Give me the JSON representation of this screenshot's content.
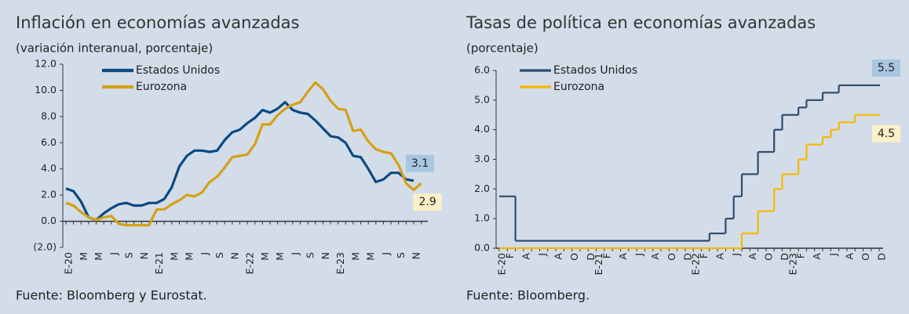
{
  "chart_data": [
    {
      "type": "line",
      "title": "Inflación en economías avanzadas",
      "subtitle": "(variación interanual, porcentaje)",
      "source": "Fuente: Bloomberg y Eurostat.",
      "categories": [
        "E-20",
        null,
        "M",
        null,
        "M",
        null,
        "J",
        null,
        "S",
        null,
        "N",
        null,
        "E-21",
        null,
        "M",
        null,
        "M",
        null,
        "J",
        null,
        "S",
        null,
        "N",
        null,
        "E-22",
        null,
        "M",
        null,
        "M",
        null,
        "J",
        null,
        "S",
        null,
        "N",
        null,
        "E-23",
        null,
        "M",
        null,
        "M",
        null,
        "J",
        null,
        "S",
        null,
        "N",
        null
      ],
      "series": [
        {
          "name": "Estados Unidos",
          "color": "#0b4a84",
          "label_bg": "#a9c6e0",
          "values": [
            2.5,
            2.3,
            1.5,
            0.3,
            0.1,
            0.6,
            1.0,
            1.3,
            1.4,
            1.2,
            1.2,
            1.4,
            1.4,
            1.7,
            2.6,
            4.2,
            5.0,
            5.4,
            5.4,
            5.3,
            5.4,
            6.2,
            6.8,
            7.0,
            7.5,
            7.9,
            8.5,
            8.3,
            8.6,
            9.1,
            8.5,
            8.3,
            8.2,
            7.7,
            7.1,
            6.5,
            6.4,
            6.0,
            5.0,
            4.9,
            4.0,
            3.0,
            3.2,
            3.7,
            3.7,
            3.2,
            3.1,
            null
          ]
        },
        {
          "name": "Eurozona",
          "color": "#d4a017",
          "label_bg": "#fbf0c8",
          "values": [
            1.4,
            1.2,
            0.7,
            0.3,
            0.1,
            0.3,
            0.4,
            -0.2,
            -0.3,
            -0.3,
            -0.3,
            -0.3,
            0.9,
            0.9,
            1.3,
            1.6,
            2.0,
            1.9,
            2.2,
            3.0,
            3.4,
            4.1,
            4.9,
            5.0,
            5.1,
            5.9,
            7.4,
            7.4,
            8.1,
            8.6,
            8.9,
            9.1,
            9.9,
            10.6,
            10.1,
            9.2,
            8.6,
            8.5,
            6.9,
            7.0,
            6.1,
            5.5,
            5.3,
            5.2,
            4.3,
            2.9,
            2.4,
            2.9
          ]
        }
      ],
      "ylim": [
        -2,
        12
      ],
      "yticks": [
        {
          "value": -2,
          "label": "(2.0)"
        },
        {
          "value": 0,
          "label": "0.0"
        },
        {
          "value": 2,
          "label": "2.0"
        },
        {
          "value": 4,
          "label": "4.0"
        },
        {
          "value": 6,
          "label": "6.0"
        },
        {
          "value": 8,
          "label": "8.0"
        },
        {
          "value": 10,
          "label": "10.0"
        },
        {
          "value": 12,
          "label": "12.0"
        }
      ]
    },
    {
      "type": "step",
      "title": "Tasas de política en economías avanzadas",
      "subtitle": "(porcentaje)",
      "source": "Fuente: Bloomberg.",
      "categories": [
        "E-20",
        "F",
        null,
        "A",
        null,
        "J",
        null,
        "A",
        null,
        "O",
        null,
        "D",
        "E-21",
        "F",
        null,
        "A",
        null,
        "J",
        null,
        "A",
        null,
        "O",
        null,
        "D",
        "E-22",
        "F",
        null,
        "A",
        null,
        "J",
        null,
        "A",
        null,
        "O",
        null,
        "D",
        "E-23",
        "F",
        null,
        "A",
        null,
        "J",
        null,
        "A",
        null,
        "O",
        null,
        "D"
      ],
      "series": [
        {
          "name": "Estados Unidos",
          "color": "#2e4d6f",
          "label_bg": "#a9c6e0",
          "values": [
            1.75,
            1.75,
            0.25,
            0.25,
            0.25,
            0.25,
            0.25,
            0.25,
            0.25,
            0.25,
            0.25,
            0.25,
            0.25,
            0.25,
            0.25,
            0.25,
            0.25,
            0.25,
            0.25,
            0.25,
            0.25,
            0.25,
            0.25,
            0.25,
            0.25,
            0.25,
            0.5,
            0.5,
            1.0,
            1.75,
            2.5,
            2.5,
            3.25,
            3.25,
            4.0,
            4.5,
            4.5,
            4.75,
            5.0,
            5.0,
            5.25,
            5.25,
            5.5,
            5.5,
            5.5,
            5.5,
            5.5,
            5.5
          ]
        },
        {
          "name": "Eurozona",
          "color": "#f5b800",
          "label_bg": "#fbf0c8",
          "values": [
            0,
            0,
            0,
            0,
            0,
            0,
            0,
            0,
            0,
            0,
            0,
            0,
            0,
            0,
            0,
            0,
            0,
            0,
            0,
            0,
            0,
            0,
            0,
            0,
            0,
            0,
            0,
            0,
            0,
            0,
            0.5,
            0.5,
            1.25,
            1.25,
            2.0,
            2.5,
            2.5,
            3.0,
            3.5,
            3.5,
            3.75,
            4.0,
            4.25,
            4.25,
            4.5,
            4.5,
            4.5,
            4.5
          ]
        }
      ],
      "ylim": [
        0,
        6
      ],
      "yticks": [
        {
          "value": 0,
          "label": "0.0"
        },
        {
          "value": 1,
          "label": "1.0"
        },
        {
          "value": 2,
          "label": "2.0"
        },
        {
          "value": 3,
          "label": "3.0"
        },
        {
          "value": 4,
          "label": "4.0"
        },
        {
          "value": 5,
          "label": "5.0"
        },
        {
          "value": 6,
          "label": "6.0"
        }
      ]
    }
  ]
}
